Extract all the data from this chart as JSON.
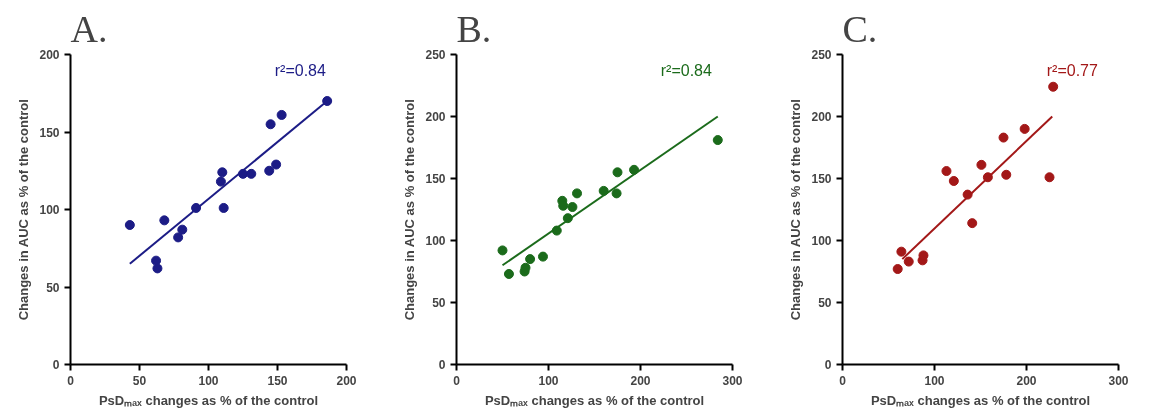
{
  "chart_data": [
    {
      "type": "scatter",
      "title": "A.",
      "xlabel": "PsDₘₐₓ changes as % of the control",
      "ylabel": "Changes in AUC as % of the control",
      "annotations": [
        "r²=0.84"
      ],
      "xlim": [
        0,
        200
      ],
      "xticks": [
        0,
        50,
        100,
        150,
        200
      ],
      "ylim": [
        0,
        200
      ],
      "yticks": [
        0,
        50,
        100,
        150,
        200
      ],
      "grid": false,
      "marker": "circle",
      "series": [
        {
          "color": "#1c1c86",
          "x": [
            43,
            62,
            63,
            68,
            78,
            81,
            91,
            109,
            110,
            111,
            125,
            131,
            144,
            145,
            149,
            153,
            186
          ],
          "values": [
            90,
            67,
            62,
            93,
            82,
            87,
            101,
            118,
            124,
            101,
            123,
            123,
            125,
            155,
            129,
            161,
            170
          ]
        },
        {
          "type": "line",
          "marker": "none",
          "color": "#1c1c86",
          "x": [
            43,
            186
          ],
          "values": [
            65,
            170
          ]
        }
      ]
    },
    {
      "type": "scatter",
      "title": "B.",
      "xlabel": "PsDₘₐₓ changes as % of the control",
      "ylabel": "Changes in AUC as % of the control",
      "annotations": [
        "r²=0.84"
      ],
      "xlim": [
        0,
        300
      ],
      "xticks": [
        0,
        100,
        200,
        300
      ],
      "ylim": [
        0,
        250
      ],
      "yticks": [
        0,
        50,
        100,
        150,
        200,
        250
      ],
      "grid": false,
      "marker": "circle",
      "series": [
        {
          "color": "#1b6b1b",
          "x": [
            50,
            57,
            74,
            75,
            80,
            94,
            109,
            115,
            116,
            121,
            126,
            131,
            160,
            174,
            175,
            193,
            284
          ],
          "values": [
            92,
            73,
            75,
            78,
            85,
            87,
            108,
            132,
            128,
            118,
            127,
            138,
            140,
            138,
            155,
            157,
            181
          ]
        },
        {
          "type": "line",
          "marker": "none",
          "color": "#1b6b1b",
          "x": [
            50,
            284
          ],
          "values": [
            80,
            200
          ]
        }
      ]
    },
    {
      "type": "scatter",
      "title": "C.",
      "xlabel": "PsDₘₐₓ changes as % of the control",
      "ylabel": "Changes in AUC as % of the control",
      "annotations": [
        "r²=0.77"
      ],
      "xlim": [
        0,
        300
      ],
      "xticks": [
        0,
        100,
        200,
        300
      ],
      "ylim": [
        0,
        250
      ],
      "yticks": [
        0,
        50,
        100,
        150,
        200,
        250
      ],
      "grid": false,
      "marker": "circle",
      "series": [
        {
          "color": "#a31818",
          "x": [
            60,
            64,
            72,
            87,
            88,
            113,
            121,
            136,
            141,
            151,
            158,
            175,
            178,
            198,
            225,
            229
          ],
          "values": [
            77,
            91,
            83,
            84,
            88,
            156,
            148,
            137,
            114,
            161,
            151,
            183,
            153,
            190,
            151,
            224
          ]
        },
        {
          "type": "line",
          "marker": "none",
          "color": "#a31818",
          "x": [
            65,
            228
          ],
          "values": [
            85,
            200
          ]
        }
      ]
    }
  ]
}
